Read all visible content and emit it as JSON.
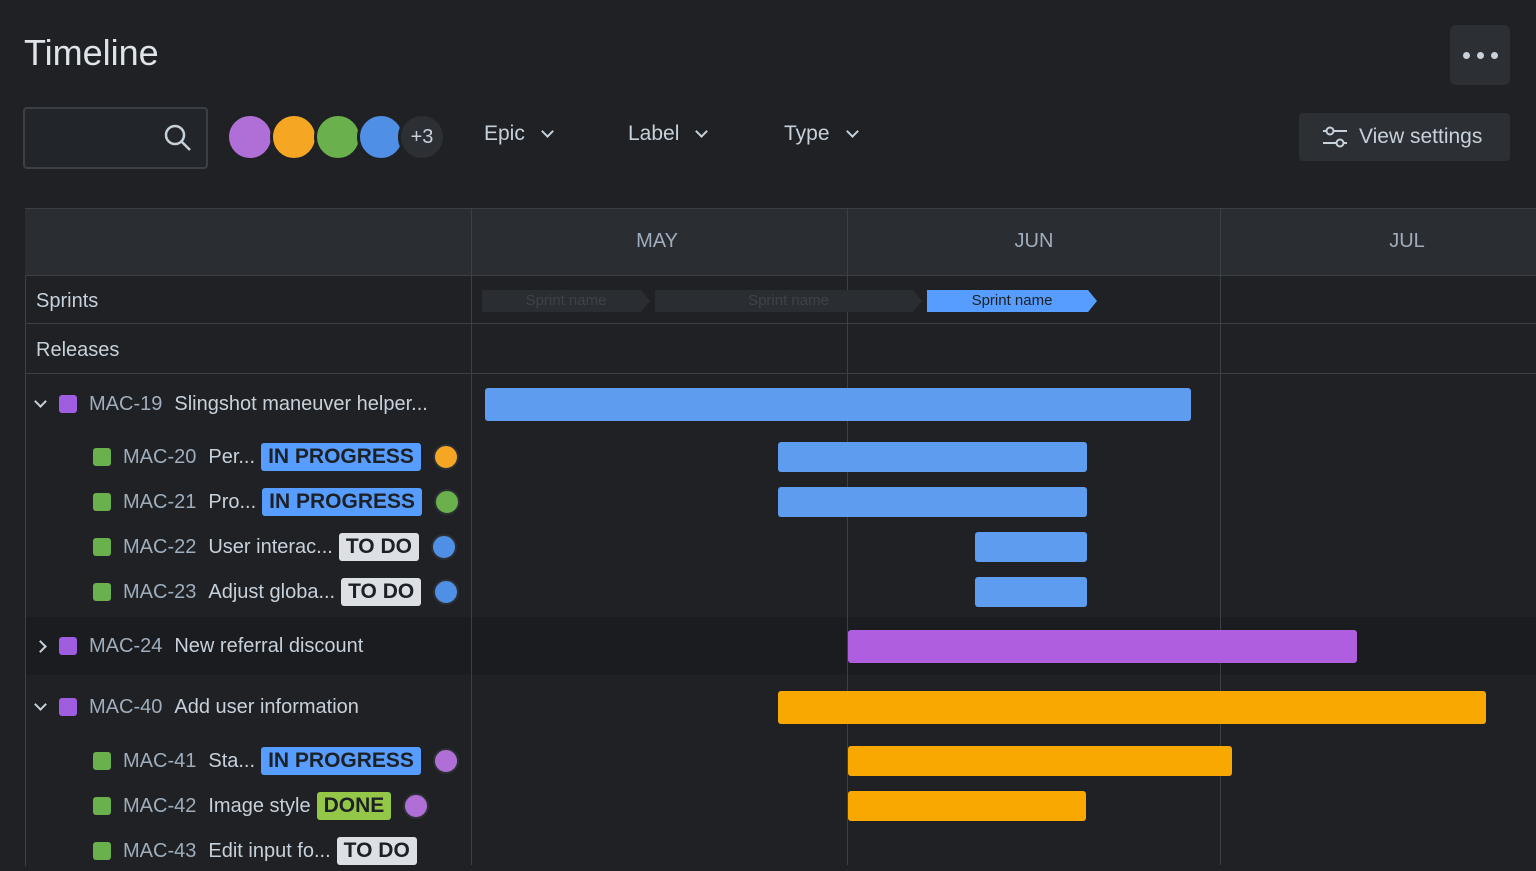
{
  "header": {
    "title": "Timeline"
  },
  "toolbar": {
    "avatar_overflow": "+3",
    "filters": [
      "Epic",
      "Label",
      "Type"
    ],
    "view_settings": "View settings"
  },
  "timeline": {
    "months": [
      "MAY",
      "JUN",
      "JUL"
    ],
    "sprints_label": "Sprints",
    "sprints": [
      "Sprint name",
      "Sprint name",
      "Sprint name"
    ],
    "releases_label": "Releases"
  },
  "rows": [
    {
      "key": "MAC-19",
      "title": "Slingshot maneuver helper..."
    },
    {
      "key": "MAC-20",
      "title": "Per...",
      "status": "IN PROGRESS"
    },
    {
      "key": "MAC-21",
      "title": "Pro...",
      "status": "IN PROGRESS"
    },
    {
      "key": "MAC-22",
      "title": "User interac...",
      "status": "TO DO"
    },
    {
      "key": "MAC-23",
      "title": "Adjust globa...",
      "status": "TO DO"
    },
    {
      "key": "MAC-24",
      "title": "New referral discount"
    },
    {
      "key": "MAC-40",
      "title": "Add user information"
    },
    {
      "key": "MAC-41",
      "title": "Sta...",
      "status": "IN PROGRESS"
    },
    {
      "key": "MAC-42",
      "title": "Image style",
      "status": "DONE"
    },
    {
      "key": "MAC-43",
      "title": "Edit input fo...",
      "status": "TO DO"
    }
  ]
}
